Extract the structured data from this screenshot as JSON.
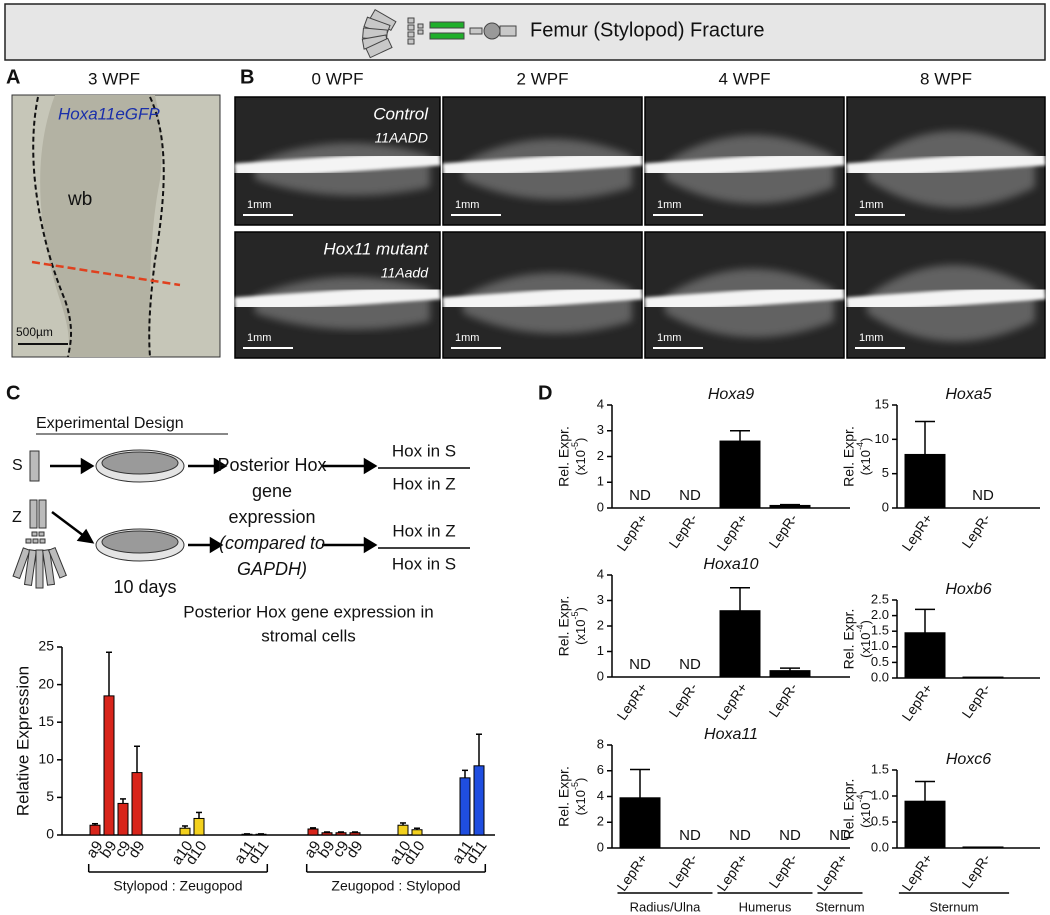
{
  "header": {
    "title": "Femur (Stylopod) Fracture"
  },
  "panel_a": {
    "label": "A",
    "title": "3 WPF",
    "gene": "Hoxa11eGFP",
    "region": "wb",
    "scale": "500µm"
  },
  "panel_b": {
    "label": "B",
    "columns": [
      "0 WPF",
      "2 WPF",
      "4 WPF",
      "8 WPF"
    ],
    "rows": [
      {
        "name": "Control",
        "genotype": "11AADD"
      },
      {
        "name": "Hox11 mutant",
        "genotype": "11Aadd"
      }
    ],
    "scale": "1mm"
  },
  "panel_c": {
    "label": "C",
    "design": {
      "title": "Experimental Design",
      "s": "S",
      "z": "Z",
      "duration": "10 days",
      "process_lines": [
        "Posterior Hox",
        "gene",
        "expression",
        "(compared to",
        "GAPDH)"
      ],
      "process_italic": [
        false,
        false,
        false,
        true,
        true
      ],
      "ratio_s": {
        "numerator": "Hox in S",
        "denominator": "Hox in Z"
      },
      "ratio_z": {
        "numerator": "Hox in Z",
        "denominator": "Hox in S"
      }
    }
  },
  "panel_d": {
    "label": "D"
  },
  "chart_data": [
    {
      "type": "bar",
      "title": [
        "Posterior Hox gene expression in",
        "stromal cells"
      ],
      "ylabel": "Relative Expression",
      "ylim": [
        0,
        25
      ],
      "yticks": [
        0,
        5,
        10,
        15,
        20,
        25
      ],
      "groups": [
        {
          "label": "Stylopod : Zeugopod",
          "categories": [
            "a9",
            "b9",
            "c9",
            "d9",
            "a10",
            "d10",
            "a11",
            "d11"
          ],
          "values": [
            1.3,
            18.5,
            4.2,
            8.3,
            0.9,
            2.2,
            0.1,
            0.1
          ],
          "errors": [
            0.2,
            5.8,
            0.6,
            3.5,
            0.3,
            0.8,
            0.05,
            0.05
          ],
          "colors": [
            "#d8251b",
            "#d8251b",
            "#d8251b",
            "#d8251b",
            "#f3d11e",
            "#f3d11e",
            "#333333",
            "#333333"
          ]
        },
        {
          "label": "Zeugopod : Stylopod",
          "categories": [
            "a9",
            "b9",
            "c9",
            "d9",
            "a10",
            "d10",
            "a11",
            "d11"
          ],
          "values": [
            0.8,
            0.3,
            0.3,
            0.3,
            1.3,
            0.7,
            7.6,
            9.2
          ],
          "errors": [
            0.15,
            0.1,
            0.1,
            0.1,
            0.3,
            0.2,
            1.0,
            4.2
          ],
          "colors": [
            "#d8251b",
            "#d8251b",
            "#d8251b",
            "#d8251b",
            "#f3d11e",
            "#f3d11e",
            "#1f4ee0",
            "#1f4ee0"
          ]
        }
      ]
    },
    {
      "type": "bar",
      "title": "Hoxa9",
      "ylabel": "Rel. Expr.",
      "yunit": "(x10",
      "yunit_exp": "-5",
      "yunit_end": ")",
      "color": "#000000",
      "ylim": [
        0,
        4
      ],
      "yticks": [
        0,
        1,
        2,
        3,
        4
      ],
      "groups": [
        {
          "categories": [
            "LepR+",
            "LepR-",
            "LepR+",
            "LepR-"
          ],
          "values": [
            null,
            null,
            2.6,
            0.1
          ],
          "errors": [
            null,
            null,
            0.4,
            0.03
          ],
          "value_labels": [
            "ND",
            "ND",
            null,
            null
          ]
        }
      ]
    },
    {
      "type": "bar",
      "title": "Hoxa10",
      "ylabel": "Rel. Expr.",
      "yunit": "(x10",
      "yunit_exp": "-5",
      "yunit_end": ")",
      "color": "#000000",
      "ylim": [
        0,
        4
      ],
      "yticks": [
        0,
        1,
        2,
        3,
        4
      ],
      "groups": [
        {
          "categories": [
            "LepR+",
            "LepR-",
            "LepR+",
            "LepR-"
          ],
          "values": [
            null,
            null,
            2.6,
            0.25
          ],
          "errors": [
            null,
            null,
            0.9,
            0.1
          ],
          "value_labels": [
            "ND",
            "ND",
            null,
            null
          ]
        }
      ]
    },
    {
      "type": "bar",
      "title": "Hoxa11",
      "ylabel": "Rel. Expr.",
      "yunit": "(x10",
      "yunit_exp": "-5",
      "yunit_end": ")",
      "color": "#000000",
      "ylim": [
        0,
        8
      ],
      "yticks": [
        0,
        2,
        4,
        6,
        8
      ],
      "groups": [
        {
          "label": "Radius/Ulna",
          "categories": [
            "LepR+",
            "LepR-"
          ],
          "values": [
            3.9,
            null
          ],
          "errors": [
            2.2,
            null
          ],
          "value_labels": [
            null,
            "ND"
          ]
        },
        {
          "label": "Humerus",
          "categories": [
            "LepR+",
            "LepR-"
          ],
          "values": [
            null,
            null
          ],
          "errors": [
            null,
            null
          ],
          "value_labels": [
            "ND",
            "ND"
          ]
        },
        {
          "label": "Sternum",
          "categories": [
            "LepR+"
          ],
          "values": [
            null
          ],
          "errors": [
            null
          ],
          "value_labels": [
            "ND"
          ]
        }
      ]
    },
    {
      "type": "bar",
      "title": "Hoxa5",
      "ylabel": "Rel. Expr.",
      "yunit": "(x10",
      "yunit_exp": "-4",
      "yunit_end": ")",
      "color": "#000000",
      "ylim": [
        0,
        15
      ],
      "yticks": [
        0,
        5,
        10,
        15
      ],
      "groups": [
        {
          "categories": [
            "LepR+",
            "LepR-"
          ],
          "values": [
            7.8,
            null
          ],
          "errors": [
            4.8,
            null
          ],
          "value_labels": [
            null,
            "ND"
          ]
        }
      ]
    },
    {
      "type": "bar",
      "title": "Hoxb6",
      "ylabel": "Rel. Expr.",
      "yunit": "(x10",
      "yunit_exp": "-4",
      "yunit_end": ")",
      "color": "#000000",
      "ylim": [
        0,
        2.5
      ],
      "yticks": [
        {
          "value": 0,
          "label": "0.0"
        },
        0.5,
        {
          "value": 1,
          "label": "1.0"
        },
        1.5,
        {
          "value": 2,
          "label": "2.0"
        },
        2.5
      ],
      "groups": [
        {
          "categories": [
            "LepR+",
            "LepR-"
          ],
          "values": [
            1.45,
            0.03
          ],
          "errors": [
            0.75,
            null
          ]
        }
      ]
    },
    {
      "type": "bar",
      "title": "Hoxc6",
      "ylabel": "Rel. Expr.",
      "yunit": "(x10",
      "yunit_exp": "-4",
      "yunit_end": ")",
      "color": "#000000",
      "ylim": [
        0,
        1.5
      ],
      "yticks": [
        {
          "value": 0,
          "label": "0.0"
        },
        0.5,
        {
          "value": 1,
          "label": "1.0"
        },
        1.5
      ],
      "groups": [
        {
          "label": "Sternum",
          "categories": [
            "LepR+",
            "LepR-"
          ],
          "values": [
            0.9,
            0.02
          ],
          "errors": [
            0.38,
            null
          ]
        }
      ]
    }
  ]
}
